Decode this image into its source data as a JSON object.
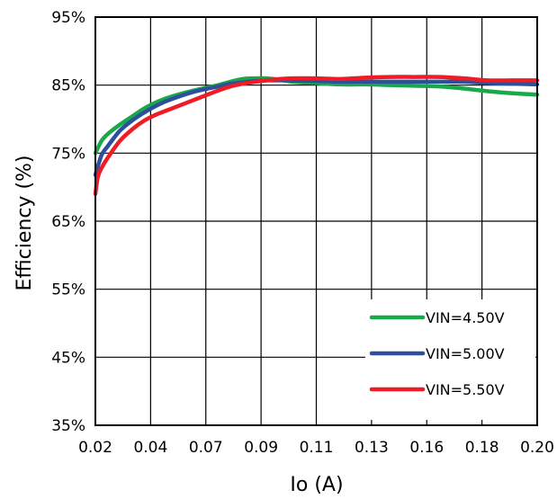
{
  "chart_data": {
    "type": "line",
    "title": "",
    "xlabel": "Io (A)",
    "ylabel": "Efficiency  (%)",
    "x_ticks": [
      "0.02",
      "0.04",
      "0.07",
      "0.09",
      "0.11",
      "0.13",
      "0.16",
      "0.18",
      "0.20"
    ],
    "y_ticks": [
      "35%",
      "45%",
      "55%",
      "65%",
      "75%",
      "85%",
      "95%"
    ],
    "xlim": [
      0.02,
      0.2
    ],
    "ylim": [
      35,
      95
    ],
    "grid": true,
    "legend_position": "bottom-right",
    "series": [
      {
        "name": "VIN=4.50V",
        "color": "#19a84a",
        "x": [
          0.02,
          0.0225,
          0.025,
          0.03,
          0.035,
          0.04,
          0.045,
          0.05,
          0.06,
          0.07,
          0.075,
          0.08,
          0.085,
          0.09,
          0.095,
          0.1,
          0.11,
          0.12,
          0.13,
          0.14,
          0.15,
          0.16,
          0.17,
          0.18,
          0.19,
          0.2
        ],
        "y": [
          75.0,
          76.8,
          77.8,
          79.2,
          80.4,
          81.6,
          82.5,
          83.2,
          84.2,
          85.0,
          85.5,
          85.9,
          86.0,
          86.0,
          85.8,
          85.5,
          85.3,
          85.1,
          85.1,
          85.0,
          84.9,
          84.8,
          84.5,
          84.1,
          83.8,
          83.6
        ]
      },
      {
        "name": "VIN=5.00V",
        "color": "#2e4f9c",
        "x": [
          0.02,
          0.0225,
          0.025,
          0.03,
          0.035,
          0.04,
          0.045,
          0.05,
          0.06,
          0.07,
          0.075,
          0.08,
          0.085,
          0.09,
          0.095,
          0.1,
          0.11,
          0.12,
          0.13,
          0.14,
          0.15,
          0.16,
          0.17,
          0.18,
          0.19,
          0.2
        ],
        "y": [
          71.8,
          74.7,
          76.0,
          78.3,
          79.8,
          81.0,
          82.0,
          82.8,
          84.0,
          84.8,
          85.2,
          85.4,
          85.6,
          85.7,
          85.7,
          85.7,
          85.6,
          85.5,
          85.5,
          85.5,
          85.5,
          85.5,
          85.5,
          85.3,
          85.2,
          85.1
        ]
      },
      {
        "name": "VIN=5.50V",
        "color": "#ee1c24",
        "x": [
          0.02,
          0.021,
          0.0225,
          0.025,
          0.03,
          0.035,
          0.04,
          0.045,
          0.05,
          0.06,
          0.07,
          0.075,
          0.08,
          0.085,
          0.09,
          0.095,
          0.1,
          0.11,
          0.12,
          0.13,
          0.14,
          0.15,
          0.16,
          0.17,
          0.18,
          0.19,
          0.2
        ],
        "y": [
          69.0,
          71.5,
          72.8,
          74.3,
          76.8,
          78.5,
          79.8,
          80.7,
          81.4,
          82.8,
          84.2,
          84.8,
          85.2,
          85.5,
          85.7,
          85.9,
          86.0,
          86.0,
          85.9,
          86.1,
          86.2,
          86.2,
          86.2,
          86.0,
          85.7,
          85.7,
          85.7
        ]
      }
    ]
  }
}
